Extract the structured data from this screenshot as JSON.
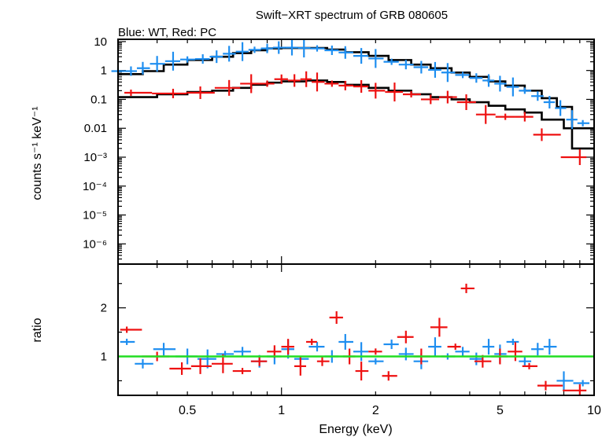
{
  "title": "Swift−XRT spectrum of GRB 080605",
  "subtitle": "Blue: WT, Red: PC",
  "xlabel": "Energy (keV)",
  "colors": {
    "wt": "#1e8ef0",
    "pc": "#ee1111",
    "model": "#000000",
    "ratio_line": "#22dd22"
  },
  "chart_data": [
    {
      "type": "scatter",
      "panel": "spectrum",
      "ylabel": "counts s⁻¹ keV⁻¹",
      "xscale": "log",
      "yscale": "log",
      "xlim": [
        0.3,
        10
      ],
      "ylim": [
        2e-07,
        12
      ],
      "ytick_labels": [
        "10",
        "1",
        "0.1",
        "0.01",
        "10⁻³",
        "10⁻⁴",
        "10⁻⁵",
        "10⁻⁶"
      ],
      "ytick_values": [
        10,
        1,
        0.1,
        0.01,
        0.001,
        0.0001,
        1e-05,
        1e-06
      ],
      "series": [
        {
          "key": "wt",
          "x": [
            0.3,
            0.33,
            0.36,
            0.4,
            0.45,
            0.5,
            0.56,
            0.62,
            0.68,
            0.75,
            0.82,
            0.9,
            0.98,
            1.08,
            1.18,
            1.3,
            1.45,
            1.6,
            1.8,
            2.0,
            2.25,
            2.5,
            2.8,
            3.1,
            3.4,
            3.8,
            4.2,
            4.6,
            5.0,
            5.5,
            6.0,
            6.6,
            7.2,
            7.8,
            8.5,
            9.2
          ],
          "y": [
            0.95,
            0.95,
            1.2,
            1.7,
            2.1,
            2.4,
            2.5,
            3.0,
            3.8,
            4.5,
            5.2,
            5.8,
            6.2,
            6.2,
            6.0,
            5.8,
            5.0,
            4.2,
            3.2,
            2.6,
            2.0,
            1.6,
            1.3,
            1.05,
            0.85,
            0.7,
            0.55,
            0.45,
            0.35,
            0.27,
            0.2,
            0.13,
            0.08,
            0.05,
            0.02,
            0.015
          ]
        },
        {
          "key": "pc",
          "x": [
            0.33,
            0.45,
            0.55,
            0.68,
            0.8,
            0.9,
            1.0,
            1.1,
            1.2,
            1.3,
            1.45,
            1.6,
            1.8,
            2.0,
            2.3,
            2.6,
            3.0,
            3.4,
            3.9,
            4.5,
            5.2,
            6.0,
            6.8,
            9.0
          ],
          "y": [
            0.17,
            0.16,
            0.17,
            0.25,
            0.35,
            0.35,
            0.5,
            0.45,
            0.5,
            0.4,
            0.35,
            0.3,
            0.28,
            0.2,
            0.18,
            0.15,
            0.1,
            0.12,
            0.08,
            0.03,
            0.025,
            0.025,
            0.006,
            0.001
          ]
        }
      ],
      "model": [
        {
          "key": "wt",
          "x": [
            0.3,
            0.36,
            0.42,
            0.5,
            0.6,
            0.7,
            0.8,
            0.9,
            1.0,
            1.2,
            1.4,
            1.6,
            1.9,
            2.2,
            2.6,
            3.0,
            3.5,
            4.0,
            4.6,
            5.2,
            6.0,
            6.8,
            7.6,
            8.5,
            10
          ],
          "y": [
            0.75,
            0.95,
            1.6,
            2.3,
            3.0,
            4.0,
            5.0,
            5.8,
            6.0,
            6.0,
            5.3,
            4.3,
            3.2,
            2.3,
            1.6,
            1.2,
            0.85,
            0.6,
            0.42,
            0.3,
            0.2,
            0.11,
            0.055,
            0.002,
            0.002
          ]
        },
        {
          "key": "pc",
          "x": [
            0.3,
            0.4,
            0.5,
            0.6,
            0.7,
            0.8,
            0.9,
            1.0,
            1.2,
            1.4,
            1.6,
            1.9,
            2.2,
            2.6,
            3.0,
            3.5,
            4.0,
            4.6,
            5.2,
            6.0,
            6.8,
            8.0,
            10
          ],
          "y": [
            0.12,
            0.15,
            0.18,
            0.2,
            0.25,
            0.32,
            0.38,
            0.42,
            0.45,
            0.4,
            0.32,
            0.25,
            0.2,
            0.15,
            0.12,
            0.1,
            0.08,
            0.06,
            0.045,
            0.035,
            0.02,
            0.01,
            0.01
          ]
        }
      ]
    },
    {
      "type": "scatter",
      "panel": "ratio",
      "ylabel": "ratio",
      "xscale": "log",
      "yscale": "linear",
      "xlim": [
        0.3,
        10
      ],
      "ylim": [
        0.2,
        2.9
      ],
      "ytick_labels": [
        "2",
        "1"
      ],
      "ytick_values": [
        2,
        1
      ],
      "xtick_labels": [
        "0.5",
        "1",
        "2",
        "5",
        "10"
      ],
      "xtick_values": [
        0.5,
        1,
        2,
        5,
        10
      ],
      "reference": 1,
      "series": [
        {
          "key": "wt",
          "x": [
            0.32,
            0.36,
            0.42,
            0.5,
            0.58,
            0.66,
            0.75,
            0.85,
            0.95,
            1.05,
            1.15,
            1.3,
            1.45,
            1.6,
            1.8,
            2.0,
            2.25,
            2.5,
            2.8,
            3.1,
            3.4,
            3.8,
            4.2,
            4.6,
            5.0,
            5.5,
            6.0,
            6.6,
            7.2,
            8.0,
            9.2
          ],
          "y": [
            1.3,
            0.85,
            1.15,
            1.0,
            0.95,
            1.05,
            1.1,
            0.9,
            1.0,
            1.15,
            0.95,
            1.2,
            1.0,
            1.3,
            1.1,
            0.9,
            1.25,
            1.05,
            0.9,
            1.2,
            1.0,
            1.1,
            0.95,
            1.2,
            1.05,
            1.3,
            0.9,
            1.15,
            1.2,
            0.5,
            0.45
          ]
        },
        {
          "key": "pc",
          "x": [
            0.32,
            0.4,
            0.48,
            0.55,
            0.65,
            0.75,
            0.85,
            0.95,
            1.05,
            1.15,
            1.25,
            1.35,
            1.5,
            1.65,
            1.8,
            2.0,
            2.2,
            2.5,
            2.8,
            3.2,
            3.6,
            3.9,
            4.4,
            5.0,
            5.6,
            6.2,
            7.0,
            9.0
          ],
          "y": [
            1.55,
            1.0,
            0.75,
            0.8,
            0.85,
            0.7,
            0.9,
            1.1,
            1.2,
            0.8,
            1.3,
            0.9,
            1.8,
            1.0,
            0.7,
            1.1,
            0.6,
            1.4,
            1.0,
            1.6,
            1.2,
            2.4,
            0.9,
            1.0,
            1.1,
            0.8,
            0.4,
            0.3
          ]
        }
      ]
    }
  ]
}
